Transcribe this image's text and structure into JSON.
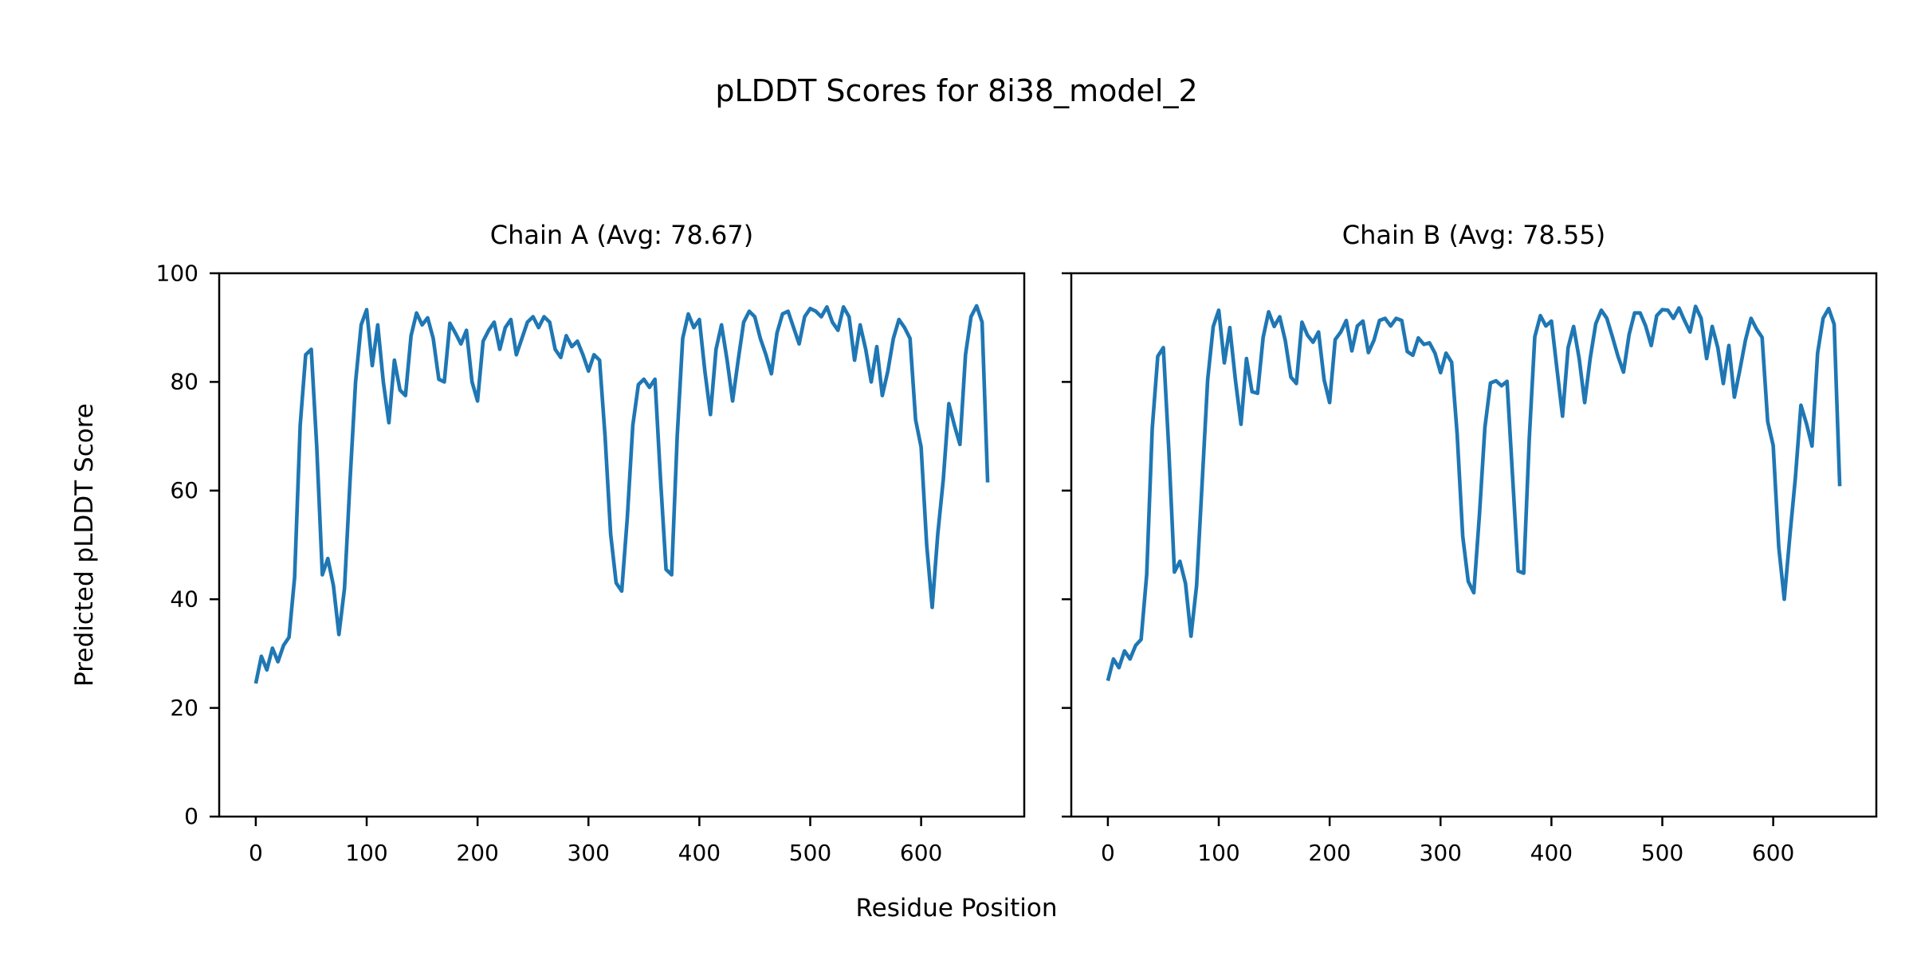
{
  "figure": {
    "suptitle": "pLDDT Scores for 8i38_model_2",
    "xlabel": "Residue Position",
    "ylabel": "Predicted pLDDT Score",
    "background_color": "#ffffff",
    "line_color": "#1f77b4",
    "axis_color": "#000000",
    "text_color": "#000000"
  },
  "chart_data": {
    "type": "line",
    "title": "pLDDT Scores for 8i38_model_2",
    "xlabel": "Residue Position",
    "ylabel": "Predicted pLDDT Score",
    "xlim": [
      -33,
      693
    ],
    "ylim": [
      0,
      100
    ],
    "xticks": [
      0,
      100,
      200,
      300,
      400,
      500,
      600
    ],
    "yticks": [
      0,
      20,
      40,
      60,
      80,
      100
    ],
    "grid": false,
    "legend_position": "none",
    "x": [
      0,
      5,
      10,
      15,
      20,
      25,
      30,
      35,
      40,
      45,
      50,
      55,
      60,
      65,
      70,
      75,
      80,
      85,
      90,
      95,
      100,
      105,
      110,
      115,
      120,
      125,
      130,
      135,
      140,
      145,
      150,
      155,
      160,
      165,
      170,
      175,
      180,
      185,
      190,
      195,
      200,
      205,
      210,
      215,
      220,
      225,
      230,
      235,
      240,
      245,
      250,
      255,
      260,
      265,
      270,
      275,
      280,
      285,
      290,
      295,
      300,
      305,
      310,
      315,
      320,
      325,
      330,
      335,
      340,
      345,
      350,
      355,
      360,
      365,
      370,
      375,
      380,
      385,
      390,
      395,
      400,
      405,
      410,
      415,
      420,
      425,
      430,
      435,
      440,
      445,
      450,
      455,
      460,
      465,
      470,
      475,
      480,
      485,
      490,
      495,
      500,
      505,
      510,
      515,
      520,
      525,
      530,
      535,
      540,
      545,
      550,
      555,
      560,
      565,
      570,
      575,
      580,
      585,
      590,
      595,
      600,
      605,
      610,
      615,
      620,
      625,
      630,
      635,
      640,
      645,
      650,
      655,
      660
    ],
    "series": [
      {
        "name": "Chain A",
        "subplot_title": "Chain A (Avg: 78.67)",
        "avg": 78.67,
        "show_ytick_labels": true,
        "values": [
          24.5,
          29.5,
          27,
          31,
          28.5,
          31.5,
          33,
          44,
          72,
          85,
          86,
          68,
          44.5,
          47.5,
          42.5,
          33.5,
          42,
          62,
          80,
          90.5,
          93.3,
          83,
          90.5,
          80,
          72.5,
          84,
          78.5,
          77.5,
          88.5,
          92.7,
          90.5,
          91.8,
          88,
          80.5,
          80,
          90.8,
          89,
          87,
          89.5,
          80,
          76.5,
          87.5,
          89.5,
          91,
          86,
          90,
          91.5,
          85,
          88,
          91,
          92,
          90,
          92,
          91,
          86,
          84.5,
          88.5,
          86.5,
          87.5,
          85,
          82,
          85,
          84,
          70,
          52,
          43,
          41.5,
          55,
          72,
          79.5,
          80.5,
          79,
          80.5,
          62,
          45.5,
          44.5,
          70,
          88,
          92.5,
          90,
          91.5,
          82,
          74,
          86,
          90.5,
          84,
          76.5,
          84,
          91,
          93,
          92,
          88,
          85,
          81.5,
          89,
          92.5,
          93,
          90,
          87,
          92,
          93.5,
          93,
          92,
          93.8,
          91,
          89.5,
          93.8,
          92,
          84,
          90.5,
          86,
          80,
          86.5,
          77.5,
          82,
          88,
          91.5,
          90,
          88,
          73,
          68,
          50,
          38.5,
          52,
          62,
          76,
          72,
          68.5,
          85,
          92,
          94,
          91,
          61.5
        ]
      },
      {
        "name": "Chain B",
        "subplot_title": "Chain B (Avg: 78.55)",
        "avg": 78.55,
        "show_ytick_labels": false,
        "values": [
          25,
          29,
          27.4,
          30.5,
          29,
          31.5,
          32.6,
          44.5,
          71.5,
          84.7,
          86.3,
          67.4,
          45,
          47,
          42.9,
          33.2,
          42.5,
          61.5,
          80.4,
          90.2,
          93.2,
          83.5,
          90,
          80.4,
          72.2,
          84.3,
          78.2,
          77.9,
          88.2,
          92.9,
          90.2,
          92,
          87.6,
          80.9,
          79.7,
          91,
          88.6,
          87.3,
          89.2,
          80.4,
          76.2,
          87.8,
          89.2,
          91.3,
          85.7,
          90.3,
          91.2,
          85.4,
          87.7,
          91.3,
          91.7,
          90.3,
          91.7,
          91.3,
          85.6,
          84.9,
          88.1,
          86.9,
          87.2,
          85.3,
          81.7,
          85.3,
          83.6,
          70.4,
          51.6,
          43.3,
          41.2,
          55.4,
          71.6,
          79.8,
          80.2,
          79.3,
          80.1,
          62.4,
          45.2,
          44.8,
          69.6,
          88.3,
          92.2,
          90.3,
          91.2,
          82.4,
          73.7,
          86.3,
          90.2,
          84.3,
          76.2,
          84.4,
          90.7,
          93.2,
          91.7,
          88.3,
          84.7,
          81.8,
          88.7,
          92.7,
          92.7,
          90.3,
          86.7,
          92.2,
          93.3,
          93.2,
          91.7,
          93.6,
          91.3,
          89.2,
          93.9,
          91.7,
          84.3,
          90.2,
          86.3,
          79.7,
          86.7,
          77.2,
          82.3,
          87.7,
          91.7,
          89.7,
          88.2,
          72.7,
          68.3,
          49.6,
          40,
          51.6,
          62.3,
          75.7,
          72.3,
          68.2,
          85.3,
          91.7,
          93.5,
          90.6,
          60.8
        ]
      }
    ]
  }
}
